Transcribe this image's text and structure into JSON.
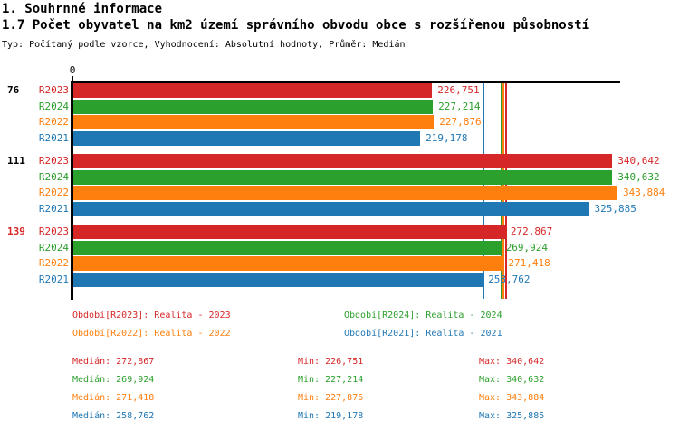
{
  "header": {
    "title": "1. Souhrnné informace",
    "subtitle": "1.7 Počet obyvatel na km2 území správního obvodu obce s rozšířenou působností",
    "meta": "Typ: Počítaný podle vzorce, Vyhodnocení: Absolutní hodnoty, Průměr: Medián"
  },
  "colors": {
    "r2023_red": "#d62728",
    "r2024_green": "#2ca02c",
    "r2022_orange": "#ff7f0e",
    "r2021_blue": "#1f77b4",
    "axis_black": "#000000"
  },
  "chart_data": {
    "type": "bar",
    "orientation": "horizontal",
    "title": "1.7 Počet obyvatel na km2 území správního obvodu obce s rozšířenou působností",
    "xlabel": "",
    "ylabel": "",
    "axis": {
      "x_min": 0,
      "x_max": 345600,
      "x_tick_labels": [
        "0"
      ],
      "grid": false
    },
    "series_order": [
      "R2023",
      "R2024",
      "R2022",
      "R2021"
    ],
    "series_colors": {
      "R2023": "#d62728",
      "R2024": "#2ca02c",
      "R2022": "#ff7f0e",
      "R2021": "#1f77b4"
    },
    "groups": [
      {
        "label": "76",
        "label_color": "#000000",
        "bars": [
          {
            "series": "R2023",
            "value": 226751,
            "display": "226,751"
          },
          {
            "series": "R2024",
            "value": 227214,
            "display": "227,214"
          },
          {
            "series": "R2022",
            "value": 227876,
            "display": "227,876"
          },
          {
            "series": "R2021",
            "value": 219178,
            "display": "219,178"
          }
        ]
      },
      {
        "label": "111",
        "label_color": "#000000",
        "bars": [
          {
            "series": "R2023",
            "value": 340642,
            "display": "340,642"
          },
          {
            "series": "R2024",
            "value": 340632,
            "display": "340,632"
          },
          {
            "series": "R2022",
            "value": 343884,
            "display": "343,884"
          },
          {
            "series": "R2021",
            "value": 325885,
            "display": "325,885"
          }
        ]
      },
      {
        "label": "139",
        "label_color": "#d62728",
        "bars": [
          {
            "series": "R2023",
            "value": 272867,
            "display": "272,867"
          },
          {
            "series": "R2024",
            "value": 269924,
            "display": "269,924"
          },
          {
            "series": "R2022",
            "value": 271418,
            "display": "271,418"
          },
          {
            "series": "R2021",
            "value": 258762,
            "display": "258,762"
          }
        ]
      }
    ],
    "median_lines": [
      {
        "series": "R2021",
        "value": 258762,
        "color": "#1f77b4"
      },
      {
        "series": "R2024",
        "value": 269924,
        "color": "#2ca02c"
      },
      {
        "series": "R2022",
        "value": 271418,
        "color": "#ff7f0e"
      },
      {
        "series": "R2023",
        "value": 272867,
        "color": "#d62728"
      }
    ],
    "legend_position": "bottom"
  },
  "legend": {
    "items": [
      {
        "text": "Období[R2023]: Realita - 2023",
        "color": "#d62728"
      },
      {
        "text": "Období[R2024]: Realita - 2024",
        "color": "#2ca02c"
      },
      {
        "text": "Období[R2022]: Realita - 2022",
        "color": "#ff7f0e"
      },
      {
        "text": "Období[R2021]: Realita - 2021",
        "color": "#1f77b4"
      }
    ]
  },
  "stats": {
    "rows": [
      {
        "color": "#d62728",
        "median": "Medián: 272,867",
        "min": "Min: 226,751",
        "max": "Max: 340,642"
      },
      {
        "color": "#2ca02c",
        "median": "Medián: 269,924",
        "min": "Min: 227,214",
        "max": "Max: 340,632"
      },
      {
        "color": "#ff7f0e",
        "median": "Medián: 271,418",
        "min": "Min: 227,876",
        "max": "Max: 343,884"
      },
      {
        "color": "#1f77b4",
        "median": "Medián: 258,762",
        "min": "Min: 219,178",
        "max": "Max: 325,885"
      }
    ]
  }
}
